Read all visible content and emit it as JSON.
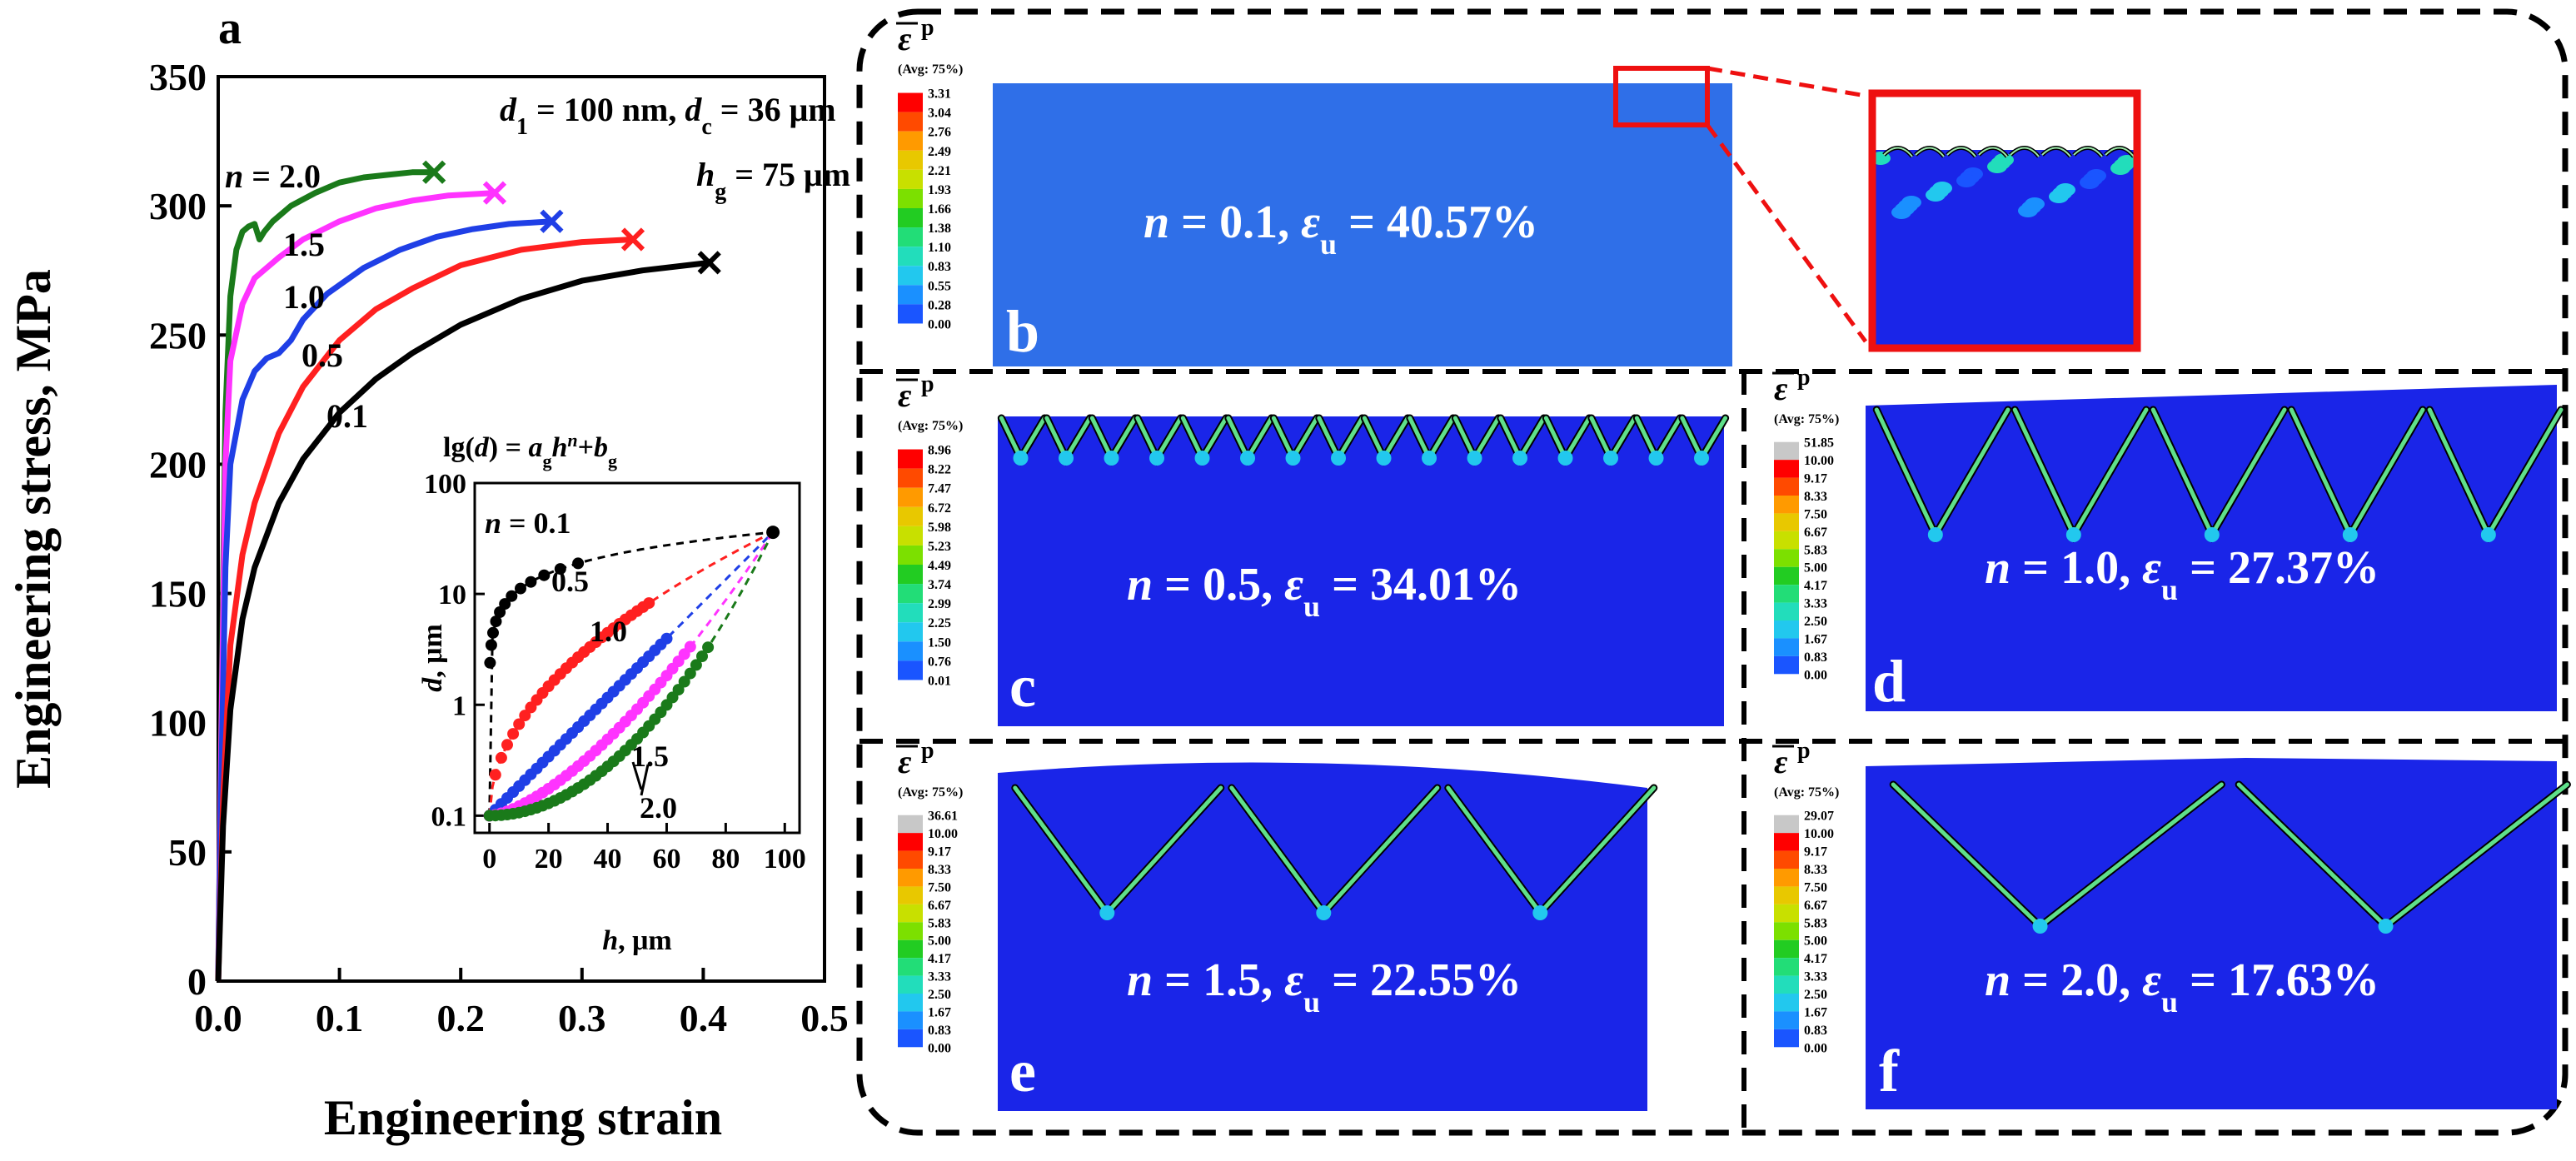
{
  "panel_a": {
    "label": "a",
    "params_line1_d1": "d",
    "params_line1_d1_sub": "1",
    "params_line1_mid": " = 100 nm, ",
    "params_line1_dc": "d",
    "params_line1_dc_sub": "c",
    "params_line1_end": " = 36 μm",
    "params_line2": "h",
    "params_line2_sub": "g",
    "params_line2_end": " = 75 μm"
  },
  "chart_data": [
    {
      "type": "line",
      "title": "",
      "xlabel": "Engineering strain",
      "ylabel": "Engineering stress, MPa",
      "xlim": [
        0.0,
        0.5
      ],
      "ylim": [
        0,
        350
      ],
      "xticks": [
        "0.0",
        "0.1",
        "0.2",
        "0.3",
        "0.4",
        "0.5"
      ],
      "yticks": [
        "0",
        "50",
        "100",
        "150",
        "200",
        "250",
        "300",
        "350"
      ],
      "series": [
        {
          "name": "n = 2.0",
          "label": "n = 2.0",
          "color": "#1a7a1a",
          "x": [
            0,
            0.003,
            0.006,
            0.01,
            0.015,
            0.02,
            0.025,
            0.03,
            0.034,
            0.038,
            0.045,
            0.06,
            0.08,
            0.1,
            0.12,
            0.14,
            0.16,
            0.178
          ],
          "y": [
            0,
            120,
            220,
            265,
            283,
            290,
            292,
            293,
            287,
            290,
            294,
            300,
            305,
            309,
            311,
            312,
            313,
            313
          ],
          "failure": [
            0.178,
            313
          ]
        },
        {
          "name": "n = 1.5",
          "label": "1.5",
          "color": "#ff33ff",
          "x": [
            0,
            0.003,
            0.006,
            0.01,
            0.02,
            0.03,
            0.04,
            0.05,
            0.07,
            0.1,
            0.13,
            0.16,
            0.19,
            0.228
          ],
          "y": [
            0,
            110,
            200,
            240,
            262,
            272,
            276,
            280,
            287,
            294,
            299,
            302,
            304,
            305
          ],
          "failure": [
            0.228,
            305
          ]
        },
        {
          "name": "n = 1.0",
          "label": "1.0",
          "color": "#1f3fe6",
          "x": [
            0,
            0.003,
            0.006,
            0.01,
            0.02,
            0.03,
            0.04,
            0.05,
            0.06,
            0.07,
            0.09,
            0.12,
            0.15,
            0.18,
            0.21,
            0.24,
            0.275
          ],
          "y": [
            0,
            90,
            160,
            200,
            225,
            236,
            241,
            243,
            248,
            256,
            266,
            276,
            283,
            288,
            291,
            293,
            294
          ],
          "failure": [
            0.275,
            294
          ]
        },
        {
          "name": "n = 0.5",
          "label": "0.5",
          "color": "#ff2020",
          "x": [
            0,
            0.004,
            0.01,
            0.02,
            0.03,
            0.05,
            0.07,
            0.1,
            0.13,
            0.16,
            0.2,
            0.25,
            0.3,
            0.342
          ],
          "y": [
            0,
            70,
            130,
            165,
            185,
            212,
            230,
            248,
            260,
            268,
            277,
            283,
            286,
            287
          ],
          "failure": [
            0.342,
            287
          ]
        },
        {
          "name": "n = 0.1",
          "label": "0.1",
          "color": "#000000",
          "x": [
            0,
            0.004,
            0.01,
            0.02,
            0.03,
            0.05,
            0.07,
            0.1,
            0.13,
            0.16,
            0.2,
            0.25,
            0.3,
            0.35,
            0.405
          ],
          "y": [
            0,
            60,
            105,
            140,
            160,
            185,
            202,
            220,
            233,
            243,
            254,
            264,
            271,
            275,
            278
          ],
          "failure": [
            0.405,
            278
          ]
        }
      ]
    },
    {
      "type": "scatter",
      "title": "lg(d) = agh^n+bg",
      "xlabel": "h, μm",
      "ylabel": "d, μm",
      "xlim": [
        -5,
        105
      ],
      "ylim_log": [
        0.07,
        100
      ],
      "xticks": [
        "0",
        "20",
        "40",
        "60",
        "80",
        "100"
      ],
      "yticks": [
        "0.1",
        "1",
        "10",
        "100"
      ],
      "endpoints": {
        "h_start": 0,
        "d_start": 0.1,
        "h_end": 96,
        "d_end": 36
      },
      "series": [
        {
          "name": "n = 0.1",
          "label": "n = 0.1",
          "color": "#000000",
          "n": 0.1
        },
        {
          "name": "n = 0.5",
          "label": "0.5",
          "color": "#ff2020",
          "n": 0.5
        },
        {
          "name": "n = 1.0",
          "label": "1.0",
          "color": "#1f3fe6",
          "n": 1.0
        },
        {
          "name": "n = 1.5",
          "label": "1.5",
          "color": "#ff33ff",
          "n": 1.5
        },
        {
          "name": "n = 2.0",
          "label": "2.0",
          "color": "#1a7a1a",
          "n": 2.0
        }
      ]
    }
  ],
  "inset": {
    "formula_prefix": "lg(",
    "formula_d": "d",
    "formula_mid": ") = ",
    "formula_a": "a",
    "formula_a_sub": "g",
    "formula_h": "h",
    "formula_n": "n",
    "formula_plus": "+",
    "formula_b": "b",
    "formula_b_sub": "g"
  },
  "legend_header": "ε",
  "legend_header_sup": "p",
  "legend_avg": "(Avg: 75%)",
  "panels": [
    {
      "id": "b",
      "label": "b",
      "n_text": "n",
      "n_value": " = 0.1,  ",
      "eps": "ε",
      "eps_sub": "u",
      "eps_value": " = 40.57%",
      "color_fill": "#2f6fe8",
      "legend": [
        "3.31",
        "3.04",
        "2.76",
        "2.49",
        "2.21",
        "1.93",
        "1.66",
        "1.38",
        "1.10",
        "0.83",
        "0.55",
        "0.28",
        "0.00"
      ]
    },
    {
      "id": "c",
      "label": "c",
      "n_text": "n",
      "n_value": " = 0.5,  ",
      "eps": "ε",
      "eps_sub": "u",
      "eps_value": " = 34.01%",
      "color_fill": "#1a25e8",
      "legend": [
        "8.96",
        "8.22",
        "7.47",
        "6.72",
        "5.98",
        "5.23",
        "4.49",
        "3.74",
        "2.99",
        "2.25",
        "1.50",
        "0.76",
        "0.01"
      ]
    },
    {
      "id": "d",
      "label": "d",
      "n_text": "n",
      "n_value": " = 1.0,  ",
      "eps": "ε",
      "eps_sub": "u",
      "eps_value": " = 27.37%",
      "color_fill": "#1a25e8",
      "legend": [
        "51.85",
        "10.00",
        "9.17",
        "8.33",
        "7.50",
        "6.67",
        "5.83",
        "5.00",
        "4.17",
        "3.33",
        "2.50",
        "1.67",
        "0.83",
        "0.00"
      ]
    },
    {
      "id": "e",
      "label": "e",
      "n_text": "n",
      "n_value": " = 1.5,  ",
      "eps": "ε",
      "eps_sub": "u",
      "eps_value": " = 22.55%",
      "color_fill": "#1a25e8",
      "legend": [
        "36.61",
        "10.00",
        "9.17",
        "8.33",
        "7.50",
        "6.67",
        "5.83",
        "5.00",
        "4.17",
        "3.33",
        "2.50",
        "1.67",
        "0.83",
        "0.00"
      ]
    },
    {
      "id": "f",
      "label": "f",
      "n_text": "n",
      "n_value": " = 2.0,  ",
      "eps": "ε",
      "eps_sub": "u",
      "eps_value": " = 17.63%",
      "color_fill": "#1a25e8",
      "legend": [
        "29.07",
        "10.00",
        "9.17",
        "8.33",
        "7.50",
        "6.67",
        "5.83",
        "5.00",
        "4.17",
        "3.33",
        "2.50",
        "1.67",
        "0.83",
        "0.00"
      ]
    }
  ],
  "colors": {
    "legend13": [
      "#ff0000",
      "#ff4a00",
      "#ff9a00",
      "#e8c800",
      "#c8e000",
      "#7ce000",
      "#22cc22",
      "#22dd77",
      "#22ddbb",
      "#22c8ee",
      "#1a90ff",
      "#1a55ff",
      "#0a10ee"
    ],
    "legend14": [
      "#c8c8c8",
      "#ff0000",
      "#ff4a00",
      "#ff9a00",
      "#e8c800",
      "#c8e000",
      "#7ce000",
      "#22cc22",
      "#22dd77",
      "#22ddbb",
      "#22c8ee",
      "#1a90ff",
      "#1a55ff",
      "#0a10ee"
    ]
  }
}
